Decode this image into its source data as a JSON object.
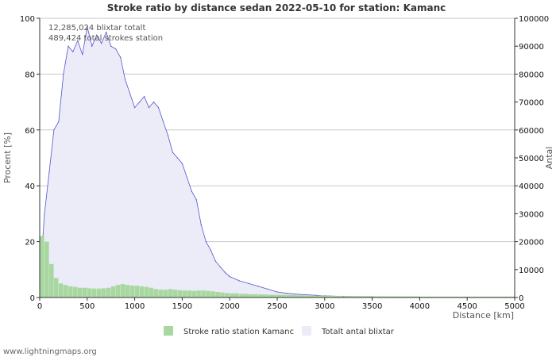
{
  "chart_data": {
    "type": "area",
    "title": "Stroke ratio by distance sedan 2022-05-10 for station: Kamanc",
    "xlabel": "Distance   [km]",
    "ylabel_left": "Procent   [%]",
    "ylabel_right": "Antal",
    "xlim": [
      0,
      5000
    ],
    "ylim_left": [
      0,
      100
    ],
    "ylim_right": [
      0,
      100000
    ],
    "x_ticks": [
      "0",
      "500",
      "1000",
      "1500",
      "2000",
      "2500",
      "3000",
      "3500",
      "4000",
      "4500",
      "5000"
    ],
    "y_ticks_left": [
      "0",
      "20",
      "40",
      "60",
      "80",
      "100"
    ],
    "y_ticks_right": [
      "0",
      "10000",
      "20000",
      "30000",
      "40000",
      "50000",
      "60000",
      "70000",
      "80000",
      "90000",
      "100000"
    ],
    "grid": true,
    "annotations": [
      "12,285,024 blixtar totalt",
      "489,424 total strokes station"
    ],
    "series": [
      {
        "name": "Totalt antal blixtar",
        "axis": "right",
        "kind": "area",
        "fill": "#ececf9",
        "line": "#5555cc",
        "x": [
          0,
          50,
          100,
          150,
          200,
          250,
          300,
          350,
          400,
          450,
          500,
          550,
          600,
          650,
          700,
          750,
          800,
          850,
          900,
          950,
          1000,
          1050,
          1100,
          1150,
          1200,
          1250,
          1300,
          1350,
          1400,
          1450,
          1500,
          1550,
          1600,
          1650,
          1700,
          1750,
          1800,
          1850,
          1900,
          1950,
          2000,
          2100,
          2200,
          2300,
          2400,
          2500,
          2600,
          2700,
          2800,
          2900,
          3000,
          3200,
          3500,
          4000,
          4500,
          5000
        ],
        "values": [
          5000,
          30000,
          45000,
          60000,
          63000,
          80000,
          90000,
          88000,
          92000,
          87000,
          97000,
          90000,
          94000,
          91000,
          95000,
          90000,
          89000,
          86000,
          78000,
          73000,
          68000,
          70000,
          72000,
          68000,
          70000,
          68000,
          63000,
          58000,
          52000,
          50000,
          48000,
          43000,
          38000,
          35000,
          26000,
          20000,
          17000,
          13000,
          11000,
          9000,
          7500,
          6000,
          5000,
          4000,
          3000,
          2000,
          1500,
          1200,
          1000,
          800,
          600,
          400,
          250,
          150,
          100,
          50
        ]
      },
      {
        "name": "Stroke ratio station Kamanc",
        "axis": "left",
        "kind": "bar",
        "fill": "#a8d8a0",
        "x": [
          0,
          50,
          100,
          150,
          200,
          250,
          300,
          350,
          400,
          450,
          500,
          550,
          600,
          650,
          700,
          750,
          800,
          850,
          900,
          950,
          1000,
          1050,
          1100,
          1150,
          1200,
          1250,
          1300,
          1350,
          1400,
          1450,
          1500,
          1550,
          1600,
          1650,
          1700,
          1750,
          1800,
          1850,
          1900,
          1950,
          2000,
          2100,
          2200,
          2300,
          2400,
          2500,
          2600,
          2700,
          2800,
          2900,
          3000,
          3200,
          3500,
          4000,
          4500,
          5000
        ],
        "values": [
          22,
          20,
          12,
          7,
          5,
          4.5,
          4,
          3.8,
          3.5,
          3.5,
          3.3,
          3.2,
          3.2,
          3.3,
          3.5,
          4,
          4.5,
          4.8,
          4.5,
          4.3,
          4.2,
          4,
          3.8,
          3.5,
          3,
          2.8,
          2.8,
          3,
          2.8,
          2.6,
          2.5,
          2.5,
          2.4,
          2.5,
          2.5,
          2.4,
          2.2,
          2,
          1.8,
          1.6,
          1.5,
          1.3,
          1.2,
          1.1,
          1,
          1,
          0.9,
          0.8,
          0.8,
          0.7,
          0.6,
          0.5,
          0.4,
          0.3,
          0.3,
          0.3
        ]
      }
    ]
  },
  "footer": "www.lightningmaps.org"
}
